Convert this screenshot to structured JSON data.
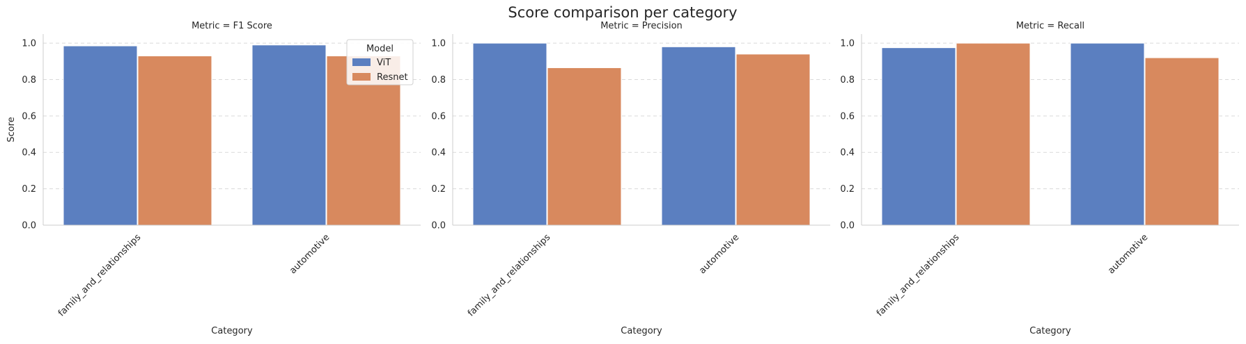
{
  "title": "Score comparison per category",
  "colors": {
    "ViT": "#5b7fc0",
    "Resnet": "#d8895e"
  },
  "chart_data": {
    "type": "bar",
    "title": "Score comparison per category",
    "categories": [
      "family_and_relationships",
      "automotive"
    ],
    "xlabel": "Category",
    "ylabel": "Score",
    "ylim": [
      0,
      1.05
    ],
    "yticks": [
      "0.0",
      "0.2",
      "0.4",
      "0.6",
      "0.8",
      "1.0"
    ],
    "grid": true,
    "legend": {
      "title": "Model",
      "placement": "top-right of first panel",
      "entries": [
        "ViT",
        "Resnet"
      ]
    },
    "panels": [
      {
        "title": "Metric = F1 Score",
        "series": [
          {
            "name": "ViT",
            "values": [
              0.985,
              0.99
            ]
          },
          {
            "name": "Resnet",
            "values": [
              0.93,
              0.93
            ]
          }
        ]
      },
      {
        "title": "Metric = Precision",
        "series": [
          {
            "name": "ViT",
            "values": [
              1.0,
              0.98
            ]
          },
          {
            "name": "Resnet",
            "values": [
              0.865,
              0.94
            ]
          }
        ]
      },
      {
        "title": "Metric = Recall",
        "series": [
          {
            "name": "ViT",
            "values": [
              0.975,
              1.0
            ]
          },
          {
            "name": "Resnet",
            "values": [
              1.0,
              0.92
            ]
          }
        ]
      }
    ]
  }
}
